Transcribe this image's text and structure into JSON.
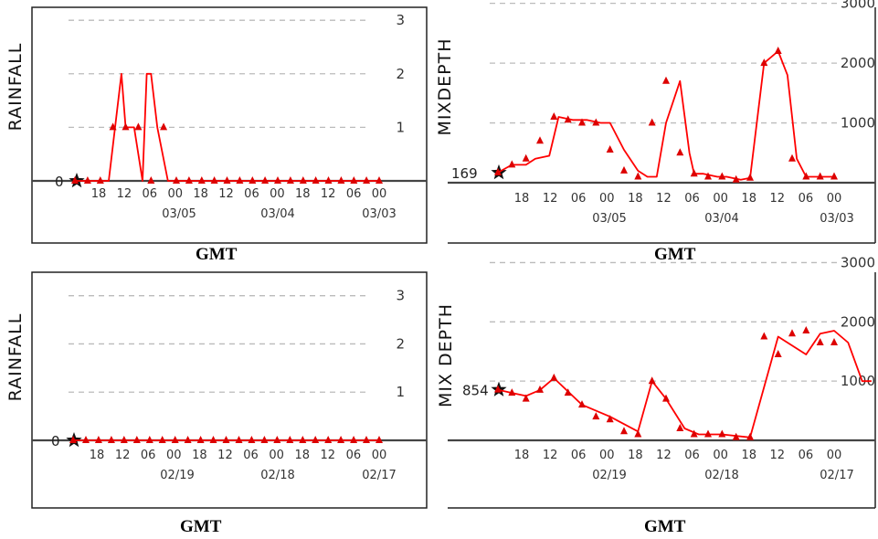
{
  "colors": {
    "series": "#ff0000",
    "marker": "#dd0000",
    "grid": "#bbbbbb",
    "axis": "#444444"
  },
  "x_ticks": [
    "18",
    "12",
    "06",
    "00",
    "18",
    "12",
    "06",
    "00",
    "18",
    "12",
    "06",
    "00"
  ],
  "chart_data": [
    {
      "id": "rainfall-top",
      "type": "line",
      "ylabel": "RAINFALL",
      "xlabel": "GMT",
      "current_value": "0",
      "ylim": [
        0,
        3.6
      ],
      "yticks": [
        1,
        2,
        3
      ],
      "ytick_labels": [
        "1",
        "2",
        "3"
      ],
      "date_labels": [
        "03/05",
        "03/04",
        "03/03"
      ],
      "x_hours_ago": [
        0,
        8,
        16,
        22,
        24,
        26,
        28,
        32,
        34,
        36,
        39,
        44,
        48,
        96,
        144
      ],
      "values": [
        0,
        0,
        0,
        2,
        1,
        1,
        1,
        0,
        2,
        2,
        1,
        0,
        0,
        0,
        0
      ],
      "markers_hours_ago": [
        0,
        6,
        12,
        18,
        24,
        30,
        36,
        42,
        48,
        54,
        60,
        66,
        72,
        78,
        84,
        90,
        96,
        102,
        108,
        114,
        120,
        126,
        132,
        138,
        144
      ],
      "marker_values": [
        0,
        0,
        0,
        1,
        1,
        1,
        0,
        1,
        0,
        0,
        0,
        0,
        0,
        0,
        0,
        0,
        0,
        0,
        0,
        0,
        0,
        0,
        0,
        0,
        0
      ]
    },
    {
      "id": "mixdepth-top",
      "type": "line",
      "ylabel": "MIXDEPTH",
      "xlabel": "GMT",
      "current_value": "169",
      "ylim": [
        0,
        3300
      ],
      "yticks": [
        1000,
        2000,
        3000
      ],
      "ytick_labels": [
        "1000",
        "2000",
        "3000"
      ],
      "date_labels": [
        "03/05",
        "03/04",
        "03/03"
      ],
      "x_hours_ago": [
        0,
        6,
        12,
        16,
        22,
        26,
        32,
        38,
        44,
        48,
        54,
        60,
        64,
        68,
        72,
        78,
        82,
        84,
        88,
        94,
        98,
        104,
        108,
        114,
        120,
        124,
        128,
        132,
        134,
        140,
        144
      ],
      "values": [
        169,
        300,
        300,
        400,
        450,
        1100,
        1050,
        1050,
        1000,
        1000,
        550,
        200,
        100,
        100,
        1000,
        1700,
        500,
        150,
        150,
        100,
        100,
        50,
        80,
        2000,
        2200,
        1800,
        400,
        100,
        100,
        100,
        100
      ],
      "markers_hours_ago": [
        0,
        6,
        12,
        18,
        24,
        30,
        36,
        42,
        48,
        54,
        60,
        66,
        72,
        78,
        84,
        90,
        96,
        102,
        108,
        114,
        120,
        126,
        132,
        138,
        144
      ],
      "marker_values": [
        169,
        300,
        400,
        700,
        1100,
        1050,
        1000,
        1000,
        550,
        200,
        100,
        1000,
        1700,
        500,
        150,
        100,
        100,
        50,
        80,
        2000,
        2200,
        400,
        100,
        100,
        100
      ]
    },
    {
      "id": "rainfall-bottom",
      "type": "line",
      "ylabel": "RAINFALL",
      "xlabel": "GMT",
      "current_value": "0",
      "ylim": [
        0,
        3.6
      ],
      "yticks": [
        1,
        2,
        3
      ],
      "ytick_labels": [
        "1",
        "2",
        "3"
      ],
      "date_labels": [
        "02/19",
        "02/18",
        "02/17"
      ],
      "x_hours_ago": [
        0,
        144
      ],
      "values": [
        0,
        0
      ],
      "markers_hours_ago": [
        0,
        6,
        12,
        18,
        24,
        30,
        36,
        42,
        48,
        54,
        60,
        66,
        72,
        78,
        84,
        90,
        96,
        102,
        108,
        114,
        120,
        126,
        132,
        138,
        144
      ],
      "marker_values": [
        0,
        0,
        0,
        0,
        0,
        0,
        0,
        0,
        0,
        0,
        0,
        0,
        0,
        0,
        0,
        0,
        0,
        0,
        0,
        0,
        0,
        0,
        0,
        0,
        0
      ]
    },
    {
      "id": "mixdepth-bottom",
      "type": "line",
      "ylabel": "MIX DEPTH",
      "xlabel": "GMT",
      "current_value": "854",
      "ylim": [
        0,
        3300
      ],
      "yticks": [
        1000,
        2000,
        3000
      ],
      "ytick_labels": [
        "1000",
        "2000",
        "3000"
      ],
      "date_labels": [
        "02/19",
        "02/18",
        "02/17"
      ],
      "x_hours_ago": [
        0,
        6,
        12,
        18,
        24,
        36,
        48,
        60,
        66,
        72,
        80,
        86,
        96,
        108,
        120,
        132,
        138,
        144,
        150,
        156,
        160
      ],
      "values": [
        854,
        800,
        750,
        850,
        1050,
        600,
        400,
        150,
        1000,
        700,
        200,
        100,
        100,
        50,
        1750,
        1450,
        1800,
        1850,
        1650,
        1000,
        1000
      ],
      "markers_hours_ago": [
        0,
        6,
        12,
        18,
        24,
        30,
        36,
        42,
        48,
        54,
        60,
        66,
        72,
        78,
        84,
        90,
        96,
        102,
        108,
        114,
        120,
        126,
        132,
        138,
        144
      ],
      "marker_values": [
        854,
        800,
        700,
        850,
        1050,
        800,
        600,
        400,
        350,
        150,
        100,
        1000,
        700,
        200,
        100,
        100,
        100,
        50,
        50,
        1750,
        1450,
        1800,
        1850,
        1650,
        1650
      ]
    }
  ]
}
